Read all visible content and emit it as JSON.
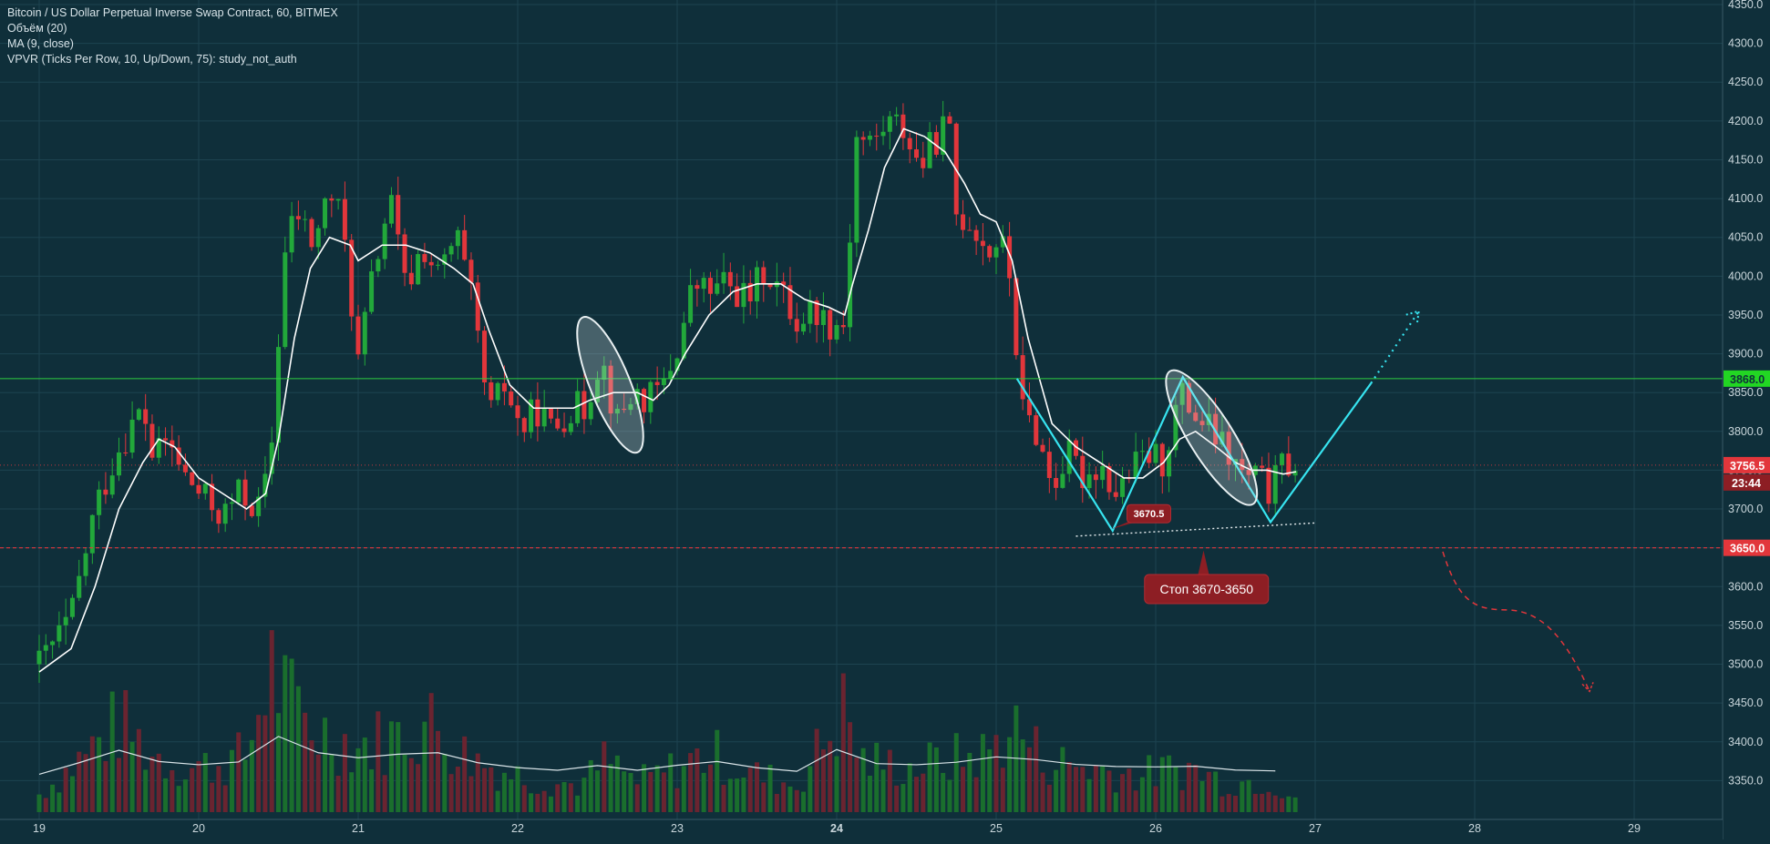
{
  "header": {
    "title": "Bitcoin / US Dollar Perpetual Inverse Swap Contract, 60, BITMEX",
    "indicators": [
      "Объём (20)",
      "MA (9, close)",
      "VPVR (Ticks Per Row, 10, Up/Down, 75): study_not_auth"
    ]
  },
  "colors": {
    "background": "#0f2f3a",
    "grid": "#1d4350",
    "up": "#22a83a",
    "down": "#e2363b",
    "ma": "#ffffff",
    "pattern": "#37e4f0",
    "resistance": "#2ecc40",
    "support": "#e2363b",
    "price_tag": "#e2363b",
    "resistance_tag": "#22d623"
  },
  "chart_data": {
    "type": "candlestick",
    "ylim": [
      3300,
      4350
    ],
    "y_ticks": [
      3350,
      3400,
      3450,
      3500,
      3550,
      3600,
      3650,
      3700,
      3750,
      3800,
      3850,
      3900,
      3950,
      4000,
      4050,
      4100,
      4150,
      4200,
      4250,
      4300,
      4350
    ],
    "y_tick_labels": [
      "3350.0",
      "3400.0",
      "3450.0",
      "3500.0",
      "3550.0",
      "3600.0",
      "3650.0",
      "3700.0",
      "3750.0",
      "3800.0",
      "3850.0",
      "3900.0",
      "3950.0",
      "4000.0",
      "4050.0",
      "4100.0",
      "4150.0",
      "4200.0",
      "4250.0",
      "4300.0",
      "4350.0"
    ],
    "x_labels": [
      "19",
      "20",
      "21",
      "22",
      "23",
      "24",
      "25",
      "26",
      "27",
      "28",
      "29"
    ],
    "x_label_bold": "24",
    "price_series": [
      [
        19.0,
        3500
      ],
      [
        19.2,
        3560
      ],
      [
        19.35,
        3700
      ],
      [
        19.5,
        3780
      ],
      [
        19.65,
        3830
      ],
      [
        19.72,
        3760
      ],
      [
        19.8,
        3790
      ],
      [
        19.92,
        3740
      ],
      [
        20.05,
        3710
      ],
      [
        20.15,
        3690
      ],
      [
        20.25,
        3720
      ],
      [
        20.38,
        3700
      ],
      [
        20.45,
        3760
      ],
      [
        20.5,
        3920
      ],
      [
        20.55,
        4050
      ],
      [
        20.62,
        4080
      ],
      [
        20.72,
        4040
      ],
      [
        20.82,
        4110
      ],
      [
        20.9,
        4070
      ],
      [
        21.0,
        3890
      ],
      [
        21.1,
        4010
      ],
      [
        21.2,
        4100
      ],
      [
        21.3,
        3980
      ],
      [
        21.4,
        4040
      ],
      [
        21.5,
        4000
      ],
      [
        21.62,
        4050
      ],
      [
        21.72,
        3960
      ],
      [
        21.82,
        3820
      ],
      [
        21.92,
        3860
      ],
      [
        22.02,
        3800
      ],
      [
        22.12,
        3830
      ],
      [
        22.22,
        3800
      ],
      [
        22.32,
        3830
      ],
      [
        22.42,
        3830
      ],
      [
        22.52,
        3900
      ],
      [
        22.62,
        3810
      ],
      [
        22.72,
        3850
      ],
      [
        22.82,
        3840
      ],
      [
        22.92,
        3860
      ],
      [
        23.02,
        3920
      ],
      [
        23.1,
        3990
      ],
      [
        23.2,
        3980
      ],
      [
        23.3,
        3990
      ],
      [
        23.45,
        3970
      ],
      [
        23.55,
        4010
      ],
      [
        23.65,
        3980
      ],
      [
        23.75,
        3940
      ],
      [
        23.85,
        3960
      ],
      [
        23.95,
        3940
      ],
      [
        24.05,
        3940
      ],
      [
        24.12,
        4180
      ],
      [
        24.22,
        4170
      ],
      [
        24.32,
        4200
      ],
      [
        24.42,
        4190
      ],
      [
        24.52,
        4140
      ],
      [
        24.6,
        4170
      ],
      [
        24.7,
        4200
      ],
      [
        24.75,
        4080
      ],
      [
        24.85,
        4070
      ],
      [
        24.95,
        4030
      ],
      [
        25.02,
        4050
      ],
      [
        25.1,
        3990
      ],
      [
        25.15,
        3830
      ],
      [
        25.25,
        3800
      ],
      [
        25.35,
        3730
      ],
      [
        25.45,
        3770
      ],
      [
        25.55,
        3740
      ],
      [
        25.65,
        3760
      ],
      [
        25.75,
        3720
      ],
      [
        25.85,
        3750
      ],
      [
        25.95,
        3770
      ],
      [
        26.05,
        3760
      ],
      [
        26.15,
        3850
      ],
      [
        26.25,
        3820
      ],
      [
        26.35,
        3800
      ],
      [
        26.45,
        3770
      ],
      [
        26.55,
        3740
      ],
      [
        26.65,
        3740
      ],
      [
        26.72,
        3720
      ],
      [
        26.8,
        3760
      ],
      [
        26.88,
        3756.5
      ]
    ],
    "ma_series": [
      [
        19.0,
        3490
      ],
      [
        19.2,
        3520
      ],
      [
        19.35,
        3600
      ],
      [
        19.5,
        3700
      ],
      [
        19.65,
        3760
      ],
      [
        19.75,
        3790
      ],
      [
        19.85,
        3780
      ],
      [
        20.0,
        3740
      ],
      [
        20.15,
        3720
      ],
      [
        20.3,
        3700
      ],
      [
        20.42,
        3720
      ],
      [
        20.5,
        3790
      ],
      [
        20.6,
        3920
      ],
      [
        20.7,
        4010
      ],
      [
        20.82,
        4050
      ],
      [
        20.95,
        4040
      ],
      [
        21.0,
        4020
      ],
      [
        21.15,
        4040
      ],
      [
        21.3,
        4040
      ],
      [
        21.45,
        4030
      ],
      [
        21.6,
        4010
      ],
      [
        21.72,
        3990
      ],
      [
        21.82,
        3930
      ],
      [
        21.95,
        3860
      ],
      [
        22.1,
        3830
      ],
      [
        22.25,
        3830
      ],
      [
        22.35,
        3830
      ],
      [
        22.45,
        3840
      ],
      [
        22.6,
        3850
      ],
      [
        22.75,
        3850
      ],
      [
        22.85,
        3840
      ],
      [
        22.95,
        3860
      ],
      [
        23.05,
        3900
      ],
      [
        23.2,
        3950
      ],
      [
        23.35,
        3980
      ],
      [
        23.5,
        3990
      ],
      [
        23.65,
        3990
      ],
      [
        23.8,
        3970
      ],
      [
        23.95,
        3960
      ],
      [
        24.05,
        3950
      ],
      [
        24.1,
        3990
      ],
      [
        24.2,
        4060
      ],
      [
        24.3,
        4140
      ],
      [
        24.42,
        4190
      ],
      [
        24.55,
        4180
      ],
      [
        24.68,
        4160
      ],
      [
        24.8,
        4120
      ],
      [
        24.9,
        4080
      ],
      [
        25.0,
        4070
      ],
      [
        25.1,
        4020
      ],
      [
        25.2,
        3920
      ],
      [
        25.35,
        3810
      ],
      [
        25.5,
        3780
      ],
      [
        25.65,
        3760
      ],
      [
        25.8,
        3740
      ],
      [
        25.92,
        3740
      ],
      [
        26.05,
        3760
      ],
      [
        26.15,
        3790
      ],
      [
        26.25,
        3800
      ],
      [
        26.38,
        3780
      ],
      [
        26.5,
        3760
      ],
      [
        26.6,
        3750
      ],
      [
        26.7,
        3750
      ],
      [
        26.8,
        3745
      ],
      [
        26.88,
        3748
      ]
    ],
    "volume_series": [
      [
        19.0,
        0.12
      ],
      [
        19.25,
        0.35
      ],
      [
        19.5,
        0.6
      ],
      [
        19.7,
        0.4
      ],
      [
        19.9,
        0.3
      ],
      [
        20.1,
        0.32
      ],
      [
        20.3,
        0.38
      ],
      [
        20.45,
        1.0
      ],
      [
        20.55,
        0.75
      ],
      [
        20.75,
        0.55
      ],
      [
        21.0,
        0.45
      ],
      [
        21.2,
        0.5
      ],
      [
        21.45,
        0.6
      ],
      [
        21.65,
        0.4
      ],
      [
        21.85,
        0.3
      ],
      [
        22.1,
        0.22
      ],
      [
        22.4,
        0.18
      ],
      [
        22.55,
        0.35
      ],
      [
        22.75,
        0.2
      ],
      [
        23.0,
        0.3
      ],
      [
        23.2,
        0.4
      ],
      [
        23.5,
        0.25
      ],
      [
        23.75,
        0.18
      ],
      [
        24.05,
        0.7
      ],
      [
        24.15,
        0.35
      ],
      [
        24.45,
        0.3
      ],
      [
        24.7,
        0.35
      ],
      [
        24.95,
        0.4
      ],
      [
        25.1,
        0.6
      ],
      [
        25.3,
        0.35
      ],
      [
        25.6,
        0.3
      ],
      [
        25.9,
        0.25
      ],
      [
        26.2,
        0.3
      ],
      [
        26.45,
        0.2
      ],
      [
        26.7,
        0.22
      ],
      [
        26.88,
        0.1
      ]
    ],
    "annotations": {
      "pattern_label": "3670.5",
      "stop_label": "Стоп 3670-3650",
      "last_price_label": "3756.5",
      "countdown_label": "23:44",
      "resistance_label": "3868.0",
      "support_label": "3650.0",
      "resistance_level": 3868,
      "support_level": 3650,
      "last_price": 3756.5
    }
  }
}
